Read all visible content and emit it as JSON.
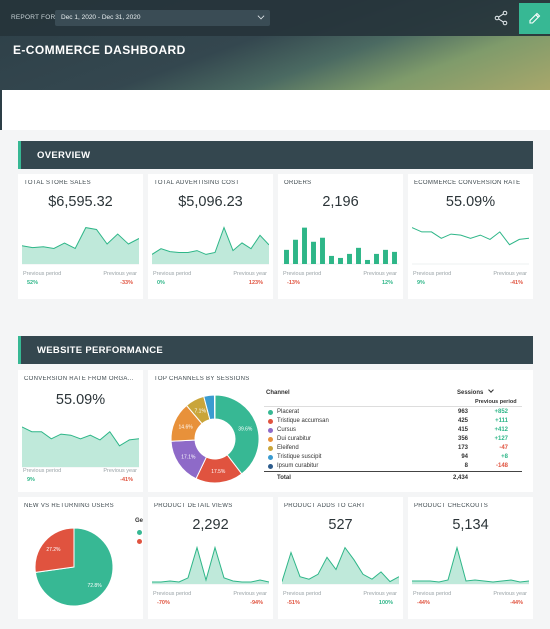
{
  "header": {
    "report_for_label": "REPORT FOR",
    "date_range": "Dec 1, 2020 - Dec 31, 2020",
    "title": "E-COMMERCE DASHBOARD"
  },
  "colors": {
    "accent": "#37b894",
    "header_bg": "#34474f",
    "positive": "#2eb688",
    "negative": "#e0533f"
  },
  "sections": {
    "overview": "OVERVIEW",
    "website_performance": "WEBSITE PERFORMANCE"
  },
  "labels": {
    "previous_period": "Previous period",
    "previous_year": "Previous year"
  },
  "overview": [
    {
      "title": "TOTAL STORE SALES",
      "value": "$6,595.32",
      "prev_period": "52%",
      "prev_period_dir": "pos",
      "prev_year": "-33%",
      "prev_year_dir": "neg",
      "chart_data": {
        "type": "area",
        "values": [
          20,
          18,
          19,
          17,
          23,
          17,
          40,
          38,
          22,
          33,
          22,
          28
        ]
      }
    },
    {
      "title": "TOTAL ADVERTISING COST",
      "value": "$5,096.23",
      "prev_period": "0%",
      "prev_period_dir": "pos",
      "prev_year": "123%",
      "prev_year_dir": "neg",
      "chart_data": {
        "type": "area",
        "values": [
          10,
          16,
          13,
          12,
          12,
          14,
          10,
          12,
          38,
          14,
          22,
          16,
          30,
          20
        ]
      }
    },
    {
      "title": "ORDERS",
      "value": "2,196",
      "prev_period": "-13%",
      "prev_period_dir": "neg",
      "prev_year": "12%",
      "prev_year_dir": "pos",
      "chart_data": {
        "type": "bar",
        "values": [
          14,
          24,
          36,
          22,
          26,
          8,
          6,
          10,
          16,
          4,
          10,
          14,
          12
        ]
      }
    },
    {
      "title": "ECOMMERCE CONVERSION RATE",
      "value": "55.09%",
      "prev_period": "9%",
      "prev_period_dir": "pos",
      "prev_year": "-41%",
      "prev_year_dir": "neg",
      "chart_data": {
        "type": "line",
        "values": [
          34,
          30,
          30,
          24,
          28,
          27,
          24,
          27,
          23,
          30,
          18,
          23,
          24
        ]
      }
    }
  ],
  "conversion_card": {
    "title": "CONVERSION RATE FROM ORGA...",
    "value": "55.09%",
    "prev_period": "9%",
    "prev_period_dir": "pos",
    "prev_year": "-41%",
    "prev_year_dir": "neg",
    "chart_data": {
      "type": "area",
      "values": [
        34,
        30,
        30,
        24,
        28,
        27,
        24,
        27,
        23,
        30,
        18,
        23,
        24
      ]
    }
  },
  "channels": {
    "title": "TOP CHANNELS BY SESSIONS",
    "col_channel": "Channel",
    "col_sessions": "Sessions",
    "col_prev": "Previous period",
    "total_label": "Total",
    "total_value": "2,434",
    "rows": [
      {
        "name": "Placerat",
        "sessions": "963",
        "prev": "+852",
        "dir": "pos",
        "color": "#37b894"
      },
      {
        "name": "Tristique accumsan",
        "sessions": "425",
        "prev": "+111",
        "dir": "pos",
        "color": "#e0533f"
      },
      {
        "name": "Cursus",
        "sessions": "415",
        "prev": "+412",
        "dir": "pos",
        "color": "#8e6ac8"
      },
      {
        "name": "Dui curabitur",
        "sessions": "356",
        "prev": "+127",
        "dir": "pos",
        "color": "#e8913a"
      },
      {
        "name": "Eleifend",
        "sessions": "173",
        "prev": "-47",
        "dir": "neg",
        "color": "#c9a53a"
      },
      {
        "name": "Tristique suscipit",
        "sessions": "94",
        "prev": "+8",
        "dir": "pos",
        "color": "#3a9bd0"
      },
      {
        "name": "Ipsum curabitur",
        "sessions": "8",
        "prev": "-148",
        "dir": "neg",
        "color": "#2d5c8c"
      }
    ],
    "chart_data": {
      "type": "pie",
      "slices": [
        {
          "label": "39.6%",
          "value": 39.6,
          "color": "#37b894"
        },
        {
          "label": "17.5%",
          "value": 17.5,
          "color": "#e0533f"
        },
        {
          "label": "17.1%",
          "value": 17.1,
          "color": "#8e6ac8"
        },
        {
          "label": "14.6%",
          "value": 14.6,
          "color": "#e8913a"
        },
        {
          "label": "7.1%",
          "value": 7.1,
          "color": "#c9a53a"
        },
        {
          "label": "",
          "value": 3.9,
          "color": "#3a9bd0"
        },
        {
          "label": "",
          "value": 0.2,
          "color": "#2d5c8c"
        }
      ]
    }
  },
  "new_vs_returning": {
    "title": "NEW VS RETURNING USERS",
    "legend_partial": "Ge",
    "chart_data": {
      "type": "pie",
      "slices": [
        {
          "label": "72.8%",
          "value": 72.8,
          "color": "#37b894"
        },
        {
          "label": "27.2%",
          "value": 27.2,
          "color": "#e0533f"
        }
      ]
    }
  },
  "bottom": [
    {
      "title": "PRODUCT DETAIL VIEWS",
      "value": "2,292",
      "prev_period": "-70%",
      "prev_period_dir": "neg",
      "prev_year": "-94%",
      "prev_year_dir": "neg",
      "chart_data": {
        "type": "area",
        "values": [
          2,
          2,
          3,
          2,
          6,
          36,
          4,
          36,
          6,
          3,
          2,
          2,
          4,
          2
        ]
      }
    },
    {
      "title": "PRODUCT ADDS TO CART",
      "value": "527",
      "prev_period": "-51%",
      "prev_period_dir": "neg",
      "prev_year": "100%",
      "prev_year_dir": "pos",
      "chart_data": {
        "type": "area",
        "values": [
          2,
          26,
          6,
          4,
          8,
          22,
          12,
          30,
          20,
          8,
          4,
          10,
          2,
          6
        ]
      }
    },
    {
      "title": "PRODUCT CHECKOUTS",
      "value": "5,134",
      "prev_period": "-44%",
      "prev_period_dir": "neg",
      "prev_year": "-44%",
      "prev_year_dir": "neg",
      "chart_data": {
        "type": "area",
        "values": [
          3,
          3,
          3,
          2,
          4,
          36,
          3,
          4,
          3,
          2,
          3,
          4,
          2,
          3
        ]
      }
    }
  ]
}
